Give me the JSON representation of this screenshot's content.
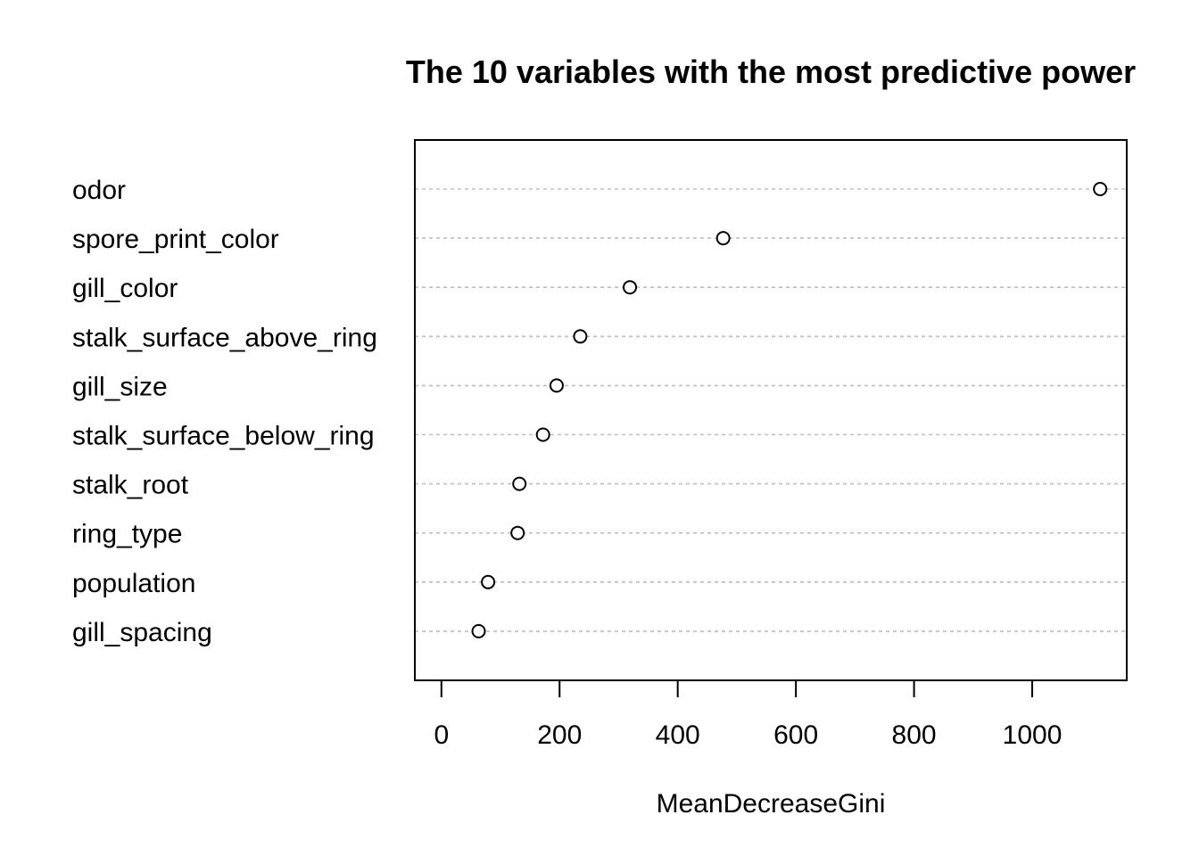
{
  "chart_data": {
    "type": "scatter",
    "subtype": "dotchart",
    "title": "The 10 variables with the most predictive power",
    "xlabel": "MeanDecreaseGini",
    "ylabel": "",
    "xlim": [
      -45,
      1160
    ],
    "xticks": [
      0,
      200,
      400,
      600,
      800,
      1000
    ],
    "xtick_labels": [
      "0",
      "200",
      "400",
      "600",
      "800",
      "1000"
    ],
    "grid": "dotted horizontal guide lines per category",
    "legend": "none",
    "marker": "open-circle",
    "categories": [
      "odor",
      "spore_print_color",
      "gill_color",
      "stalk_surface_above_ring",
      "gill_size",
      "stalk_surface_below_ring",
      "stalk_root",
      "ring_type",
      "population",
      "gill_spacing"
    ],
    "values": [
      1115,
      477,
      319,
      235,
      195,
      172,
      132,
      129,
      79,
      63
    ]
  },
  "colors": {
    "background": "#ffffff",
    "foreground": "#000000",
    "guide": "#bebebe"
  }
}
